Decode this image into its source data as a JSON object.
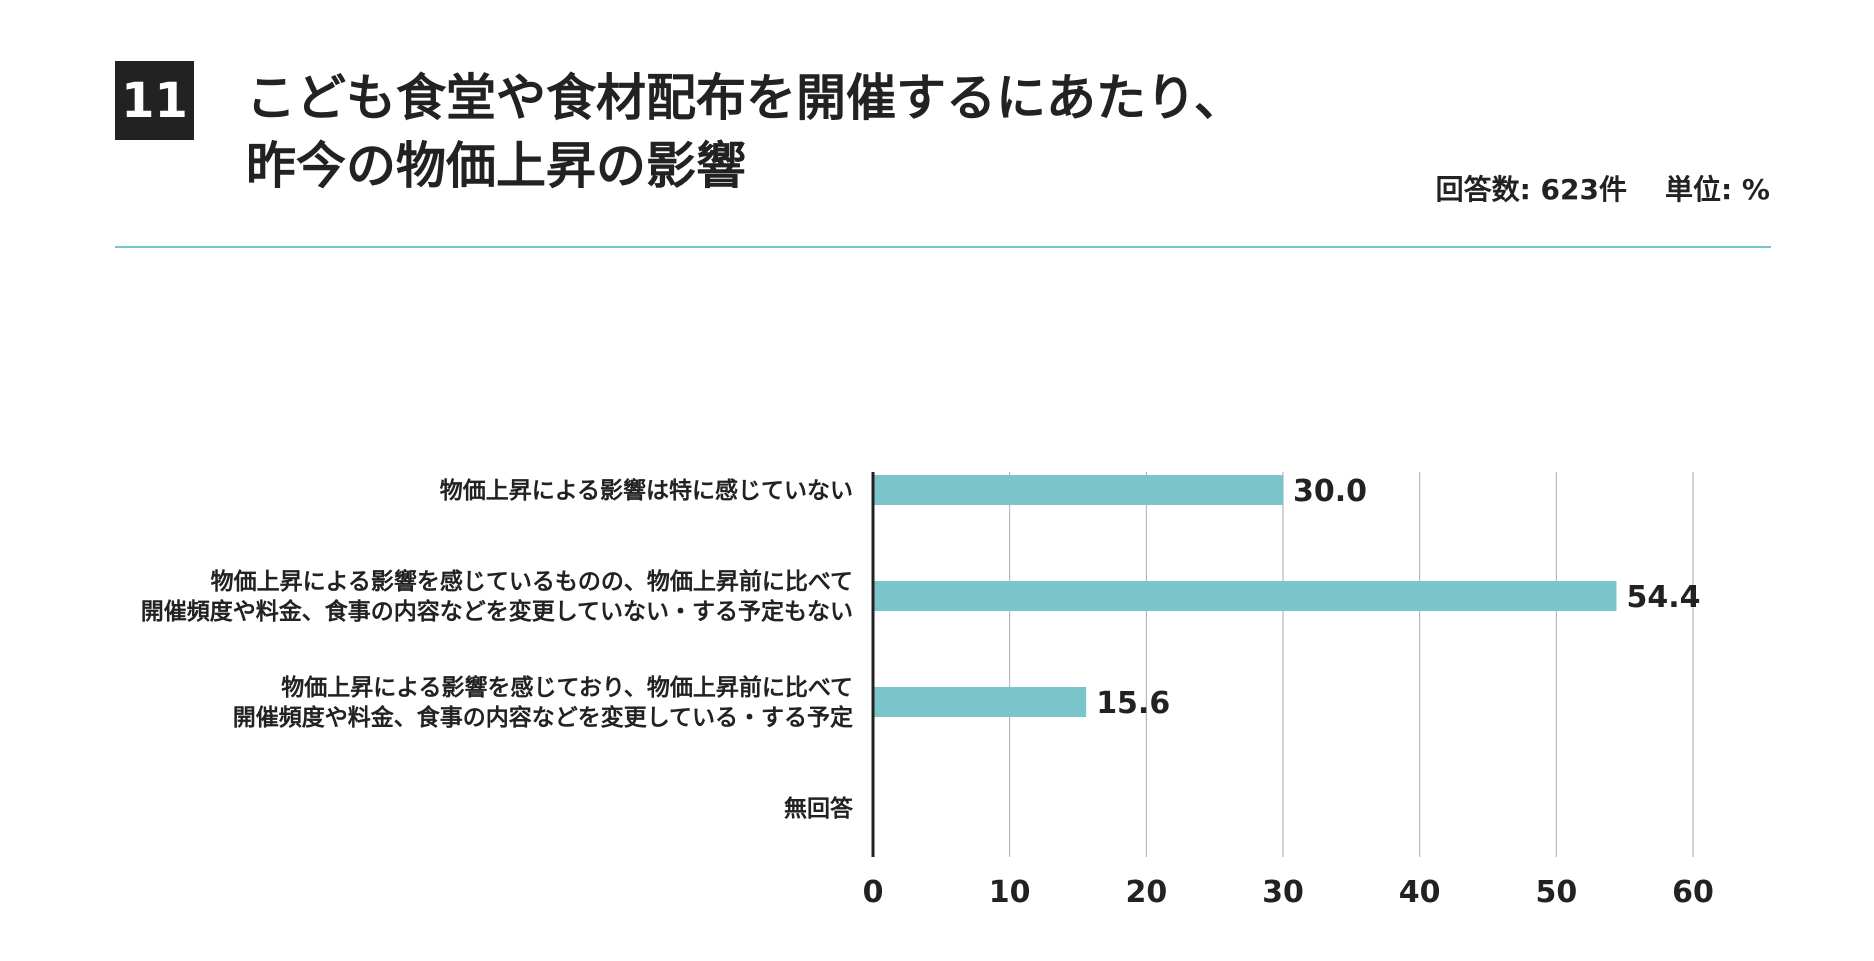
{
  "header": {
    "number": "11",
    "title_line1": "こども食堂や食材配布を開催するにあたり、",
    "title_line2": "昨今の物価上昇の影響",
    "responses": "回答数: 623件",
    "unit": "単位: %"
  },
  "colors": {
    "bar": "#79c5c9",
    "rule": "#79c5c9",
    "grid": "#aaaaaa",
    "axis": "#222222"
  },
  "chart_data": {
    "type": "bar",
    "orientation": "horizontal",
    "categories": [
      [
        "物価上昇による影響は特に感じていない"
      ],
      [
        "物価上昇による影響を感じているものの、物価上昇前に比べて",
        "開催頻度や料金、食事の内容などを変更していない・する予定もない"
      ],
      [
        "物価上昇による影響を感じており、物価上昇前に比べて",
        "開催頻度や料金、食事の内容などを変更している・する予定"
      ],
      [
        "無回答"
      ]
    ],
    "values": [
      30.0,
      54.4,
      15.6,
      null
    ],
    "value_labels": [
      "30.0",
      "54.4",
      "15.6",
      ""
    ],
    "xlim": [
      0,
      60
    ],
    "xticks": [
      "0",
      "10",
      "20",
      "30",
      "40",
      "50",
      "60"
    ],
    "grid": true
  }
}
